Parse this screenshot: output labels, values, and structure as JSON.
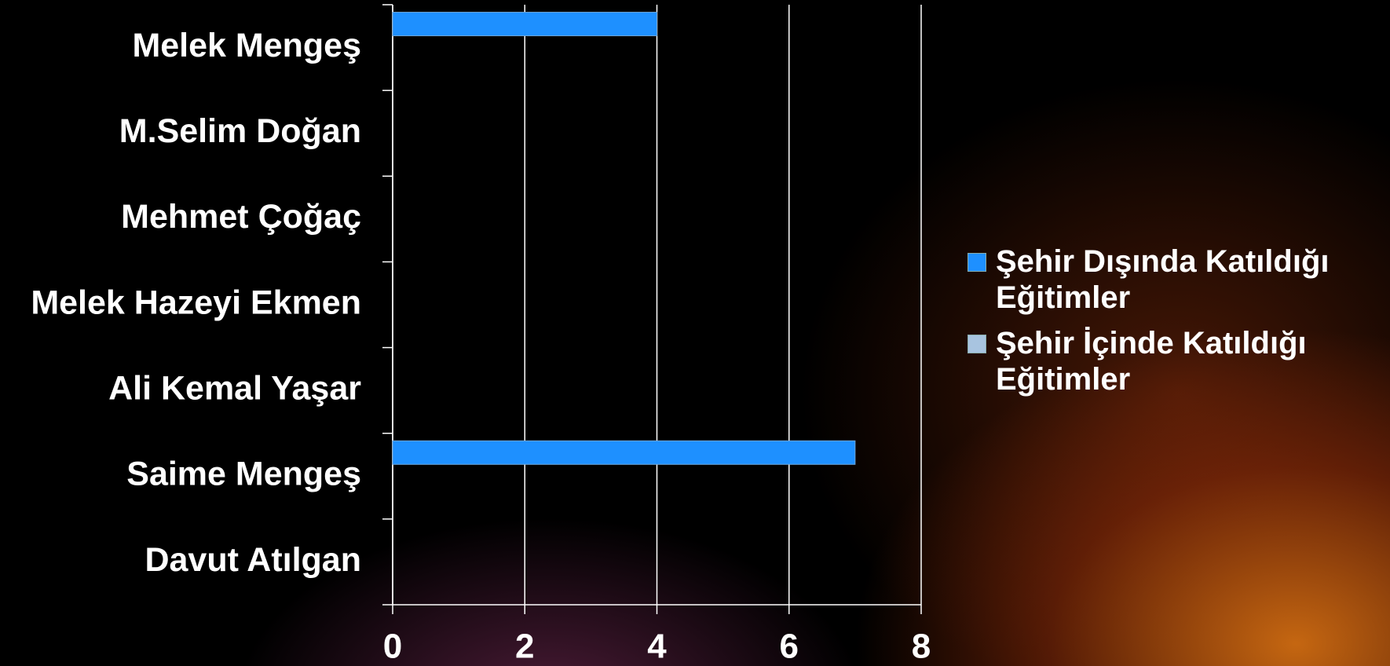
{
  "chart_data": {
    "type": "bar",
    "orientation": "horizontal",
    "categories": [
      "Melek Mengeş",
      "M.Selim Doğan",
      "Mehmet Çoğaç",
      "Melek Hazeyi Ekmen",
      "Ali Kemal Yaşar",
      "Saime Mengeş",
      "Davut Atılgan"
    ],
    "series": [
      {
        "name": "Şehir Dışında Katıldığı Eğitimler",
        "color": "#1e90ff",
        "values": [
          4,
          0,
          0,
          0,
          0,
          7,
          0
        ]
      },
      {
        "name": "Şehir İçinde Katıldığı Eğitimler",
        "color": "#a8c4e0",
        "values": [
          0,
          0,
          0,
          0,
          0,
          0,
          0
        ]
      }
    ],
    "xlim": [
      0,
      8
    ],
    "xticks": [
      0,
      2,
      4,
      6,
      8
    ],
    "grid": true,
    "legend": "right"
  }
}
